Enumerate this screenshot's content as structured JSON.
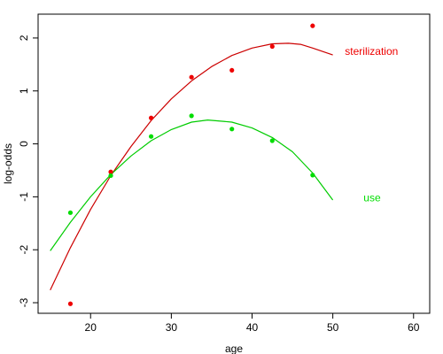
{
  "chart_data": {
    "type": "scatter",
    "xlabel": "age",
    "ylabel": "log-odds",
    "xlim": [
      13.5,
      62
    ],
    "ylim": [
      -3.2,
      2.45
    ],
    "x_ticks": [
      20,
      30,
      40,
      50,
      60
    ],
    "y_ticks": [
      -3,
      -2,
      -1,
      0,
      1,
      2
    ],
    "grid": false,
    "series": [
      {
        "name": "sterilization",
        "color": "#ee0000",
        "curve_color": "#cc0000",
        "points": [
          {
            "x": 17.5,
            "y": -3.02
          },
          {
            "x": 22.5,
            "y": -0.53
          },
          {
            "x": 27.5,
            "y": 0.49
          },
          {
            "x": 32.5,
            "y": 1.26
          },
          {
            "x": 37.5,
            "y": 1.39
          },
          {
            "x": 42.5,
            "y": 1.84
          },
          {
            "x": 47.5,
            "y": 2.23
          }
        ],
        "fit": [
          {
            "x": 15,
            "y": -2.76
          },
          {
            "x": 17.5,
            "y": -1.96
          },
          {
            "x": 20,
            "y": -1.24
          },
          {
            "x": 22.5,
            "y": -0.6
          },
          {
            "x": 25,
            "y": -0.05
          },
          {
            "x": 27.5,
            "y": 0.44
          },
          {
            "x": 30,
            "y": 0.85
          },
          {
            "x": 32.5,
            "y": 1.19
          },
          {
            "x": 35,
            "y": 1.46
          },
          {
            "x": 37.5,
            "y": 1.67
          },
          {
            "x": 40,
            "y": 1.81
          },
          {
            "x": 42.5,
            "y": 1.89
          },
          {
            "x": 44.5,
            "y": 1.9
          },
          {
            "x": 46,
            "y": 1.88
          },
          {
            "x": 47.5,
            "y": 1.81
          },
          {
            "x": 50,
            "y": 1.68
          }
        ],
        "label": "sterilization",
        "label_x": 51.5,
        "label_y": 1.75
      },
      {
        "name": "use",
        "color": "#00dd00",
        "curve_color": "#00cc00",
        "points": [
          {
            "x": 17.5,
            "y": -1.3
          },
          {
            "x": 22.5,
            "y": -0.6
          },
          {
            "x": 27.5,
            "y": 0.14
          },
          {
            "x": 32.5,
            "y": 0.53
          },
          {
            "x": 37.5,
            "y": 0.28
          },
          {
            "x": 42.5,
            "y": 0.06
          },
          {
            "x": 47.5,
            "y": -0.59
          }
        ],
        "fit": [
          {
            "x": 15,
            "y": -2.02
          },
          {
            "x": 17.5,
            "y": -1.48
          },
          {
            "x": 20,
            "y": -1.0
          },
          {
            "x": 22.5,
            "y": -0.58
          },
          {
            "x": 25,
            "y": -0.23
          },
          {
            "x": 27.5,
            "y": 0.06
          },
          {
            "x": 30,
            "y": 0.27
          },
          {
            "x": 32.5,
            "y": 0.41
          },
          {
            "x": 34.5,
            "y": 0.45
          },
          {
            "x": 37.5,
            "y": 0.41
          },
          {
            "x": 40,
            "y": 0.3
          },
          {
            "x": 42.5,
            "y": 0.12
          },
          {
            "x": 45,
            "y": -0.15
          },
          {
            "x": 47.5,
            "y": -0.55
          },
          {
            "x": 50,
            "y": -1.06
          }
        ],
        "label": "use",
        "label_x": 53.8,
        "label_y": -1.02
      }
    ]
  }
}
